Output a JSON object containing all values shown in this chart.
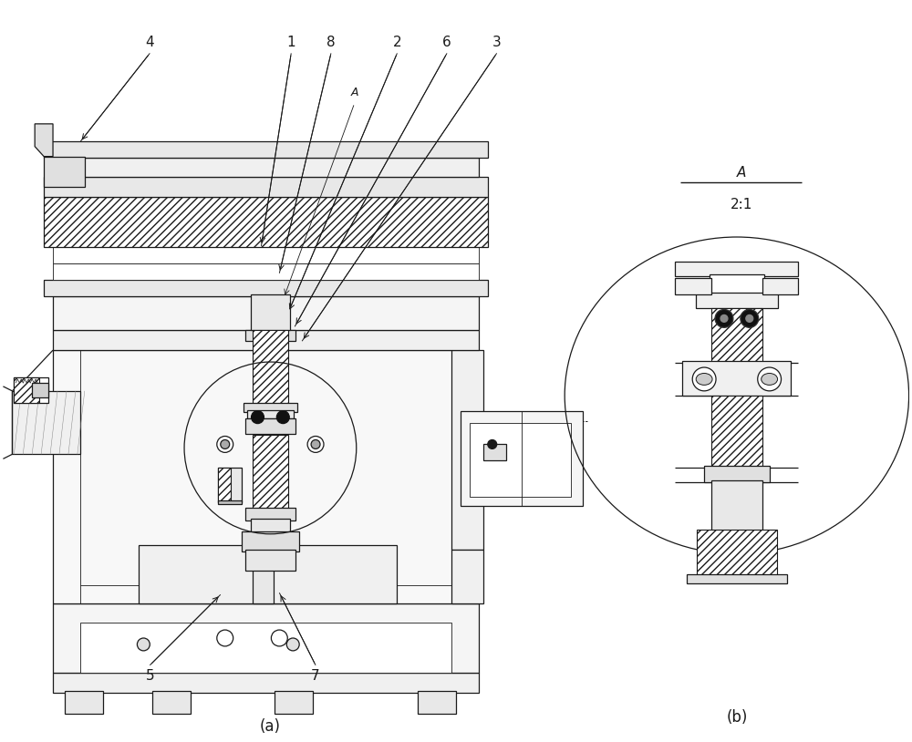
{
  "bg_color": "#ffffff",
  "line_color": "#1a1a1a",
  "title_a": "(a)",
  "title_b": "(b)",
  "scale_label": "A",
  "scale_ratio": "2:1",
  "figsize": [
    10.0,
    8.14
  ],
  "dpi": 100
}
